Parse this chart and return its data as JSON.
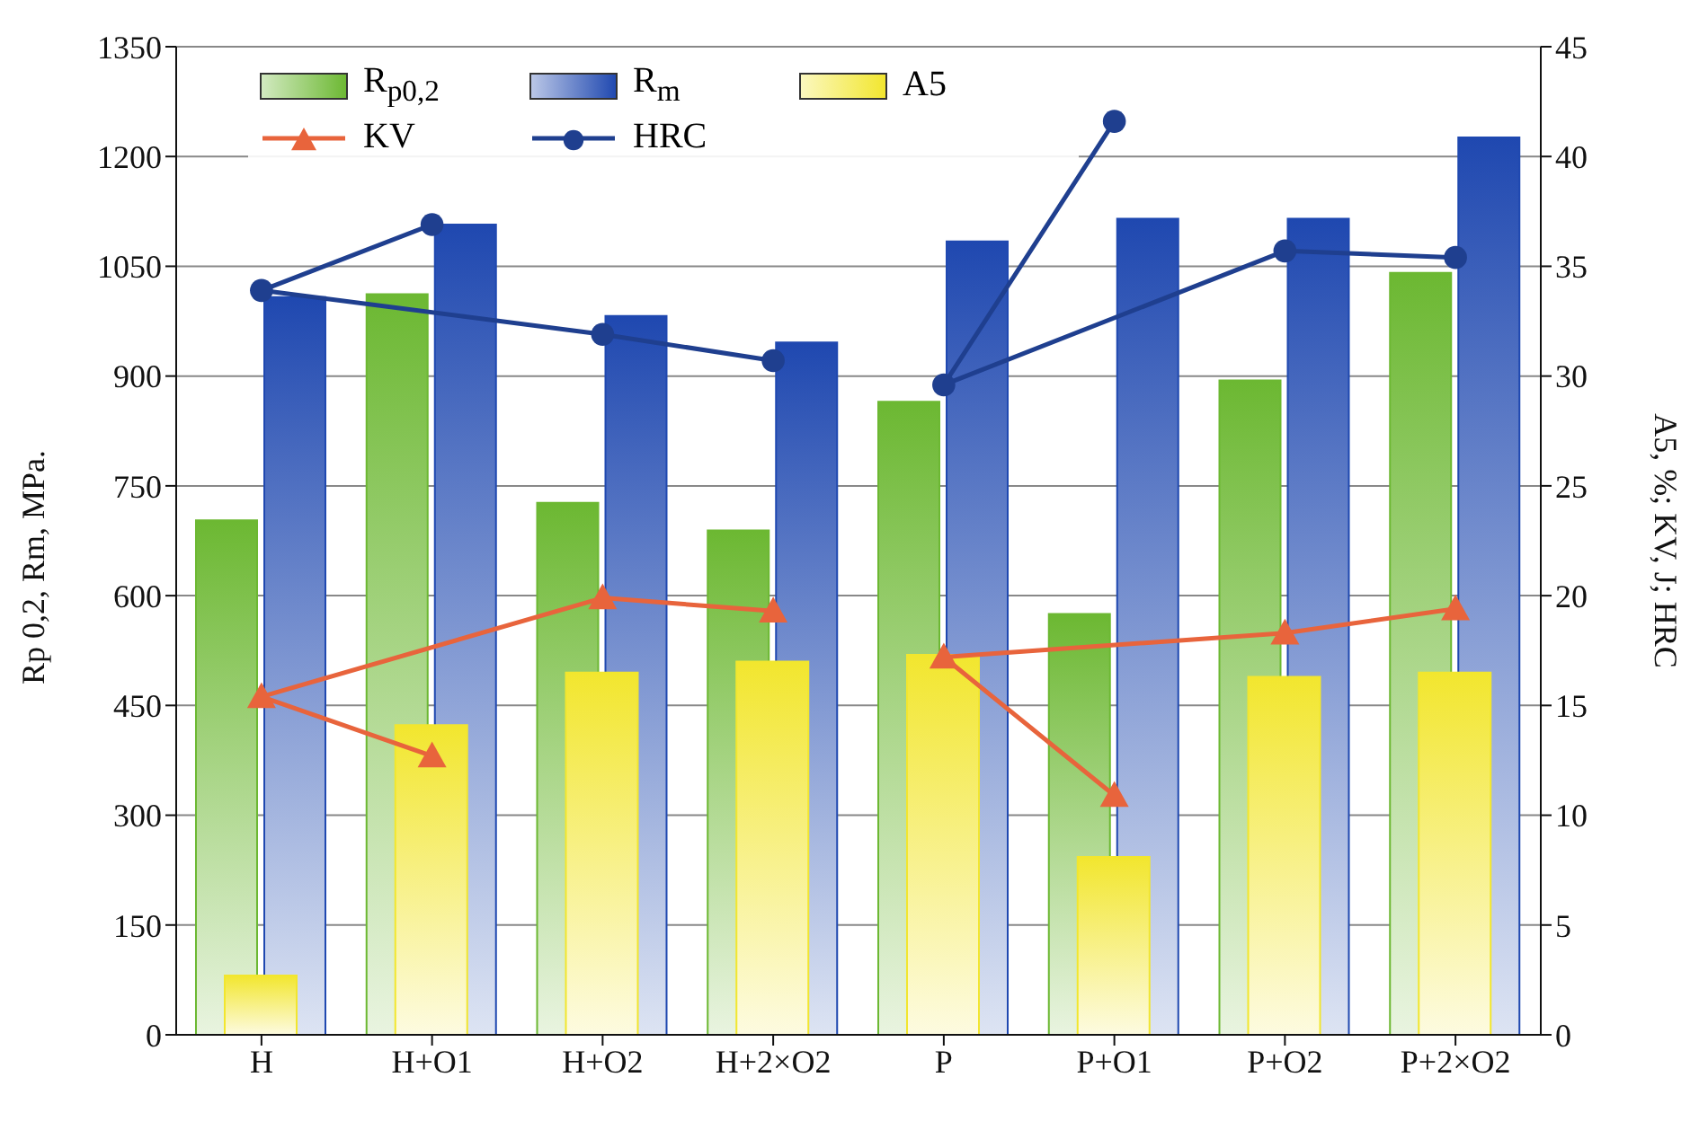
{
  "chart_data": {
    "type": "bar",
    "ylabel": "Rp 0,2, Rm, MPa.",
    "y2label": "A5, %; KV, J; HRC",
    "categories": [
      "H",
      "H+O1",
      "H+O2",
      "H+2×O2",
      "P",
      "P+O1",
      "P+O2",
      "P+2×O2"
    ],
    "series": [
      {
        "name": "R$_{p0,2}$",
        "color": "#6cb832",
        "values": [
          703,
          1012,
          727,
          689,
          865,
          575,
          894,
          1041
        ]
      },
      {
        "name": "R$_{m}$",
        "color": "#1f48b0",
        "values": [
          1008,
          1107,
          982,
          946,
          1084,
          1115,
          1115,
          1226
        ]
      },
      {
        "name": "A5",
        "axis": "y2",
        "color": "#f2e62e",
        "values": [
          2.7,
          14.1,
          16.5,
          17.0,
          17.3,
          8.1,
          16.3,
          16.5
        ]
      },
      {
        "name": "KV",
        "type": "line",
        "axis": "y2",
        "marker": "triangle",
        "color": "#e8643c",
        "x": [
          "H+O1",
          "H",
          "H+O2",
          "H+2×O2"
        ],
        "values": [
          12.7,
          15.4,
          19.9,
          19.3
        ]
      },
      {
        "type": "line",
        "axis": "y2",
        "marker": "triangle",
        "color": "#e8643c",
        "x": [
          "P+O1",
          "P",
          "P+O2",
          "P+2×O2"
        ],
        "values": [
          10.9,
          17.2,
          18.3,
          19.4
        ]
      },
      {
        "name": "HRC",
        "type": "line",
        "axis": "y2",
        "marker": "circle",
        "color": "#1f3f8f",
        "x": [
          "H+O1",
          "H",
          "H+O2",
          "H+2×O2"
        ],
        "values": [
          36.9,
          33.9,
          31.9,
          30.7
        ]
      },
      {
        "type": "line",
        "axis": "y2",
        "marker": "circle",
        "color": "#1f3f8f",
        "x": [
          "P+O1",
          "P",
          "P+O2",
          "P+2×O2"
        ],
        "values": [
          41.6,
          29.6,
          35.7,
          35.4
        ]
      }
    ],
    "ylim": [
      0,
      1350
    ],
    "yticks": [
      0,
      150,
      300,
      450,
      600,
      750,
      900,
      1050,
      1200,
      1350
    ],
    "y2lim": [
      0,
      45
    ],
    "y2ticks": [
      0,
      5,
      10,
      15,
      20,
      25,
      30,
      35,
      40,
      45
    ],
    "grid": "y",
    "legend": "top left"
  }
}
